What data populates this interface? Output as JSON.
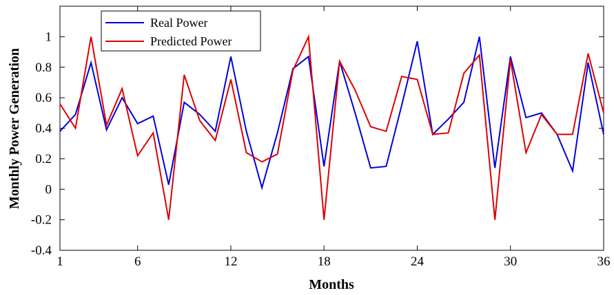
{
  "chart_data": {
    "type": "line",
    "xlabel": "Months",
    "ylabel": "Monthly Power Generation",
    "xlim": [
      1,
      36
    ],
    "ylim": [
      -0.4,
      1.2
    ],
    "xticks": [
      1,
      6,
      12,
      18,
      24,
      30,
      36
    ],
    "yticks": [
      -0.4,
      -0.2,
      0,
      0.2,
      0.4,
      0.6,
      0.8,
      1
    ],
    "ytick_labels": [
      "-0.4",
      "-0.2",
      "0",
      "0.2",
      "0.4",
      "0.6",
      "0.8",
      "1"
    ],
    "grid": false,
    "legend_position": "top-left",
    "x": [
      1,
      2,
      3,
      4,
      5,
      6,
      7,
      8,
      9,
      10,
      11,
      12,
      13,
      14,
      15,
      16,
      17,
      18,
      19,
      20,
      21,
      22,
      23,
      24,
      25,
      26,
      27,
      28,
      29,
      30,
      31,
      32,
      33,
      34,
      35,
      36
    ],
    "series": [
      {
        "name": "Real Power",
        "color": "#0000dd",
        "values": [
          0.38,
          0.49,
          0.83,
          0.39,
          0.6,
          0.43,
          0.48,
          0.03,
          0.57,
          0.49,
          0.38,
          0.87,
          0.38,
          0.01,
          0.37,
          0.79,
          0.87,
          0.15,
          0.84,
          0.5,
          0.14,
          0.15,
          0.55,
          0.97,
          0.36,
          0.46,
          0.57,
          1.0,
          0.14,
          0.87,
          0.47,
          0.5,
          0.36,
          0.12,
          0.83,
          0.36
        ]
      },
      {
        "name": "Predicted Power",
        "color": "#dd0000",
        "values": [
          0.56,
          0.4,
          1.0,
          0.42,
          0.66,
          0.22,
          0.37,
          -0.2,
          0.75,
          0.45,
          0.32,
          0.72,
          0.24,
          0.18,
          0.23,
          0.78,
          1.0,
          -0.2,
          0.84,
          0.65,
          0.41,
          0.38,
          0.74,
          0.72,
          0.36,
          0.37,
          0.76,
          0.88,
          -0.2,
          0.85,
          0.24,
          0.49,
          0.36,
          0.36,
          0.89,
          0.5
        ]
      }
    ]
  }
}
